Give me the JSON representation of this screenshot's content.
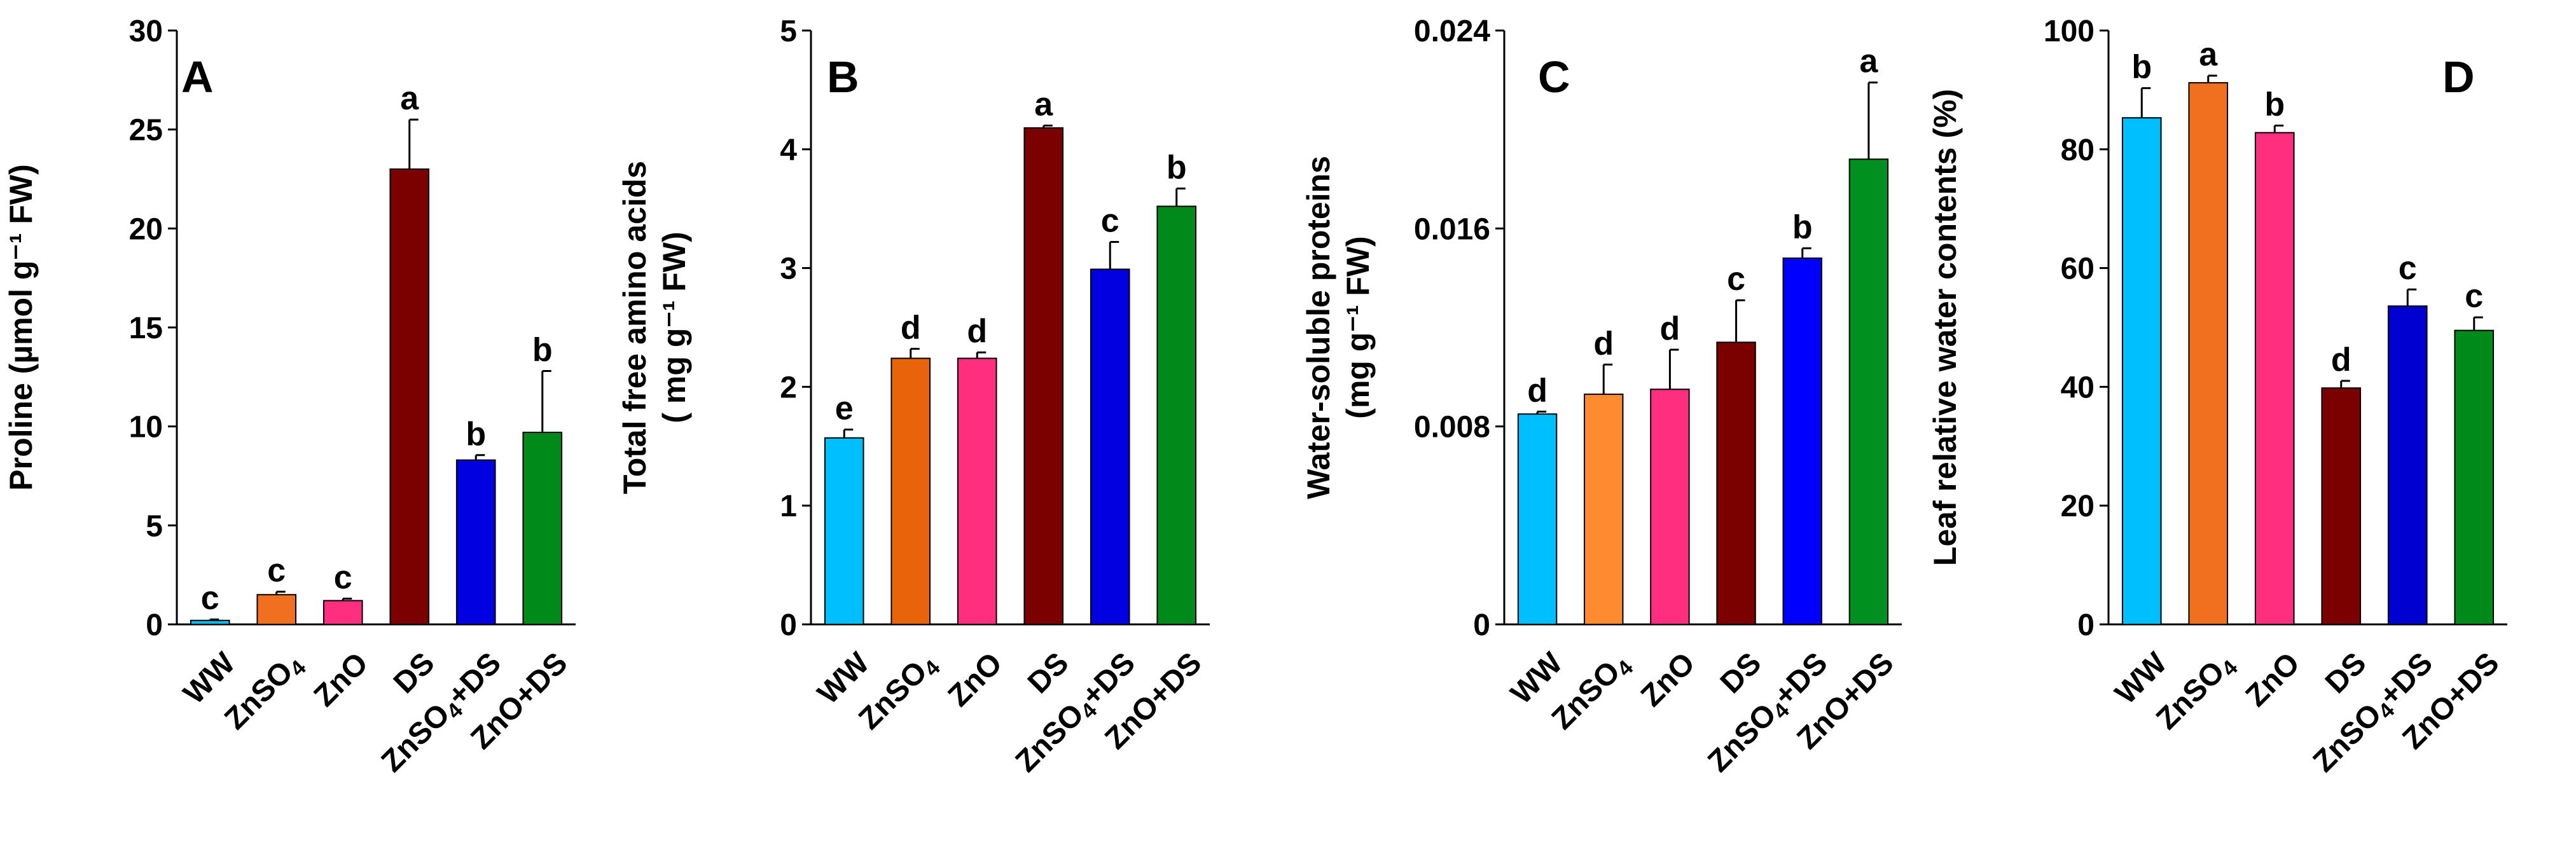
{
  "chart_data": [
    {
      "type": "bar",
      "panel_label": "A",
      "ylabel_lines": [
        "Proline (µmol g⁻¹ FW)"
      ],
      "categories": [
        "WW",
        "ZnSO4",
        "ZnO",
        "DS",
        "ZnSO4+DS",
        "ZnO+DS"
      ],
      "values": [
        0.2,
        1.5,
        1.2,
        23.0,
        8.3,
        9.7
      ],
      "errors": [
        0.05,
        0.15,
        0.1,
        2.5,
        0.25,
        3.1
      ],
      "letters": [
        "c",
        "c",
        "c",
        "a",
        "b",
        "b"
      ],
      "ylim": [
        0,
        30
      ],
      "yticks": [
        0,
        5,
        10,
        15,
        20,
        25,
        30
      ],
      "ytick_labels": [
        "0",
        "5",
        "10",
        "15",
        "20",
        "25",
        "30"
      ],
      "colors": [
        "#00BFFF",
        "#F07020",
        "#FF2E7E",
        "#7B0000",
        "#0000E0",
        "#008A1A"
      ]
    },
    {
      "type": "bar",
      "panel_label": "B",
      "ylabel_lines": [
        "Total free amino acids",
        "( mg g⁻¹ FW)"
      ],
      "categories": [
        "WW",
        "ZnSO4",
        "ZnO",
        "DS",
        "ZnSO4+DS",
        "ZnO+DS"
      ],
      "values": [
        1.57,
        2.24,
        2.24,
        4.18,
        2.99,
        3.52
      ],
      "errors": [
        0.07,
        0.08,
        0.05,
        0.02,
        0.23,
        0.15
      ],
      "letters": [
        "e",
        "d",
        "d",
        "a",
        "c",
        "b"
      ],
      "ylim": [
        0,
        5
      ],
      "yticks": [
        0,
        1,
        2,
        3,
        4,
        5
      ],
      "ytick_labels": [
        "0",
        "1",
        "2",
        "3",
        "4",
        "5"
      ],
      "colors": [
        "#00BFFF",
        "#E8640A",
        "#FF2E7E",
        "#7B0000",
        "#0000E0",
        "#008A1A"
      ]
    },
    {
      "type": "bar",
      "panel_label": "C",
      "ylabel_lines": [
        "Water-soluble proteins",
        "(mg g⁻¹ FW)"
      ],
      "categories": [
        "WW",
        "ZnSO4",
        "ZnO",
        "DS",
        "ZnSO4+DS",
        "ZnO+DS"
      ],
      "values": [
        0.0085,
        0.0093,
        0.0095,
        0.0114,
        0.0148,
        0.0188
      ],
      "errors": [
        0.0001,
        0.0012,
        0.0016,
        0.0017,
        0.0004,
        0.0031
      ],
      "letters": [
        "d",
        "d",
        "d",
        "c",
        "b",
        "a"
      ],
      "ylim": [
        0,
        0.024
      ],
      "yticks": [
        0,
        0.008,
        0.016,
        0.024
      ],
      "ytick_labels": [
        "0",
        "0.008",
        "0.016",
        "0.024"
      ],
      "colors": [
        "#00BFFF",
        "#FF8A30",
        "#FF2E7E",
        "#7B0000",
        "#0000FF",
        "#009020"
      ]
    },
    {
      "type": "bar",
      "panel_label": "D",
      "ylabel_lines": [
        "Leaf relative water contents (%)"
      ],
      "categories": [
        "WW",
        "ZnSO4",
        "ZnO",
        "DS",
        "ZnSO4+DS",
        "ZnO+DS"
      ],
      "values": [
        85.3,
        91.2,
        82.8,
        39.8,
        53.6,
        49.5
      ],
      "errors": [
        5.0,
        1.2,
        1.2,
        1.2,
        2.8,
        2.2
      ],
      "letters": [
        "b",
        "a",
        "b",
        "d",
        "c",
        "c"
      ],
      "ylim": [
        0,
        100
      ],
      "yticks": [
        0,
        20,
        40,
        60,
        80,
        100
      ],
      "ytick_labels": [
        "0",
        "20",
        "40",
        "60",
        "80",
        "100"
      ],
      "colors": [
        "#00BFFF",
        "#F07020",
        "#FF2E7E",
        "#7B0000",
        "#0000D0",
        "#008A1A"
      ]
    }
  ]
}
